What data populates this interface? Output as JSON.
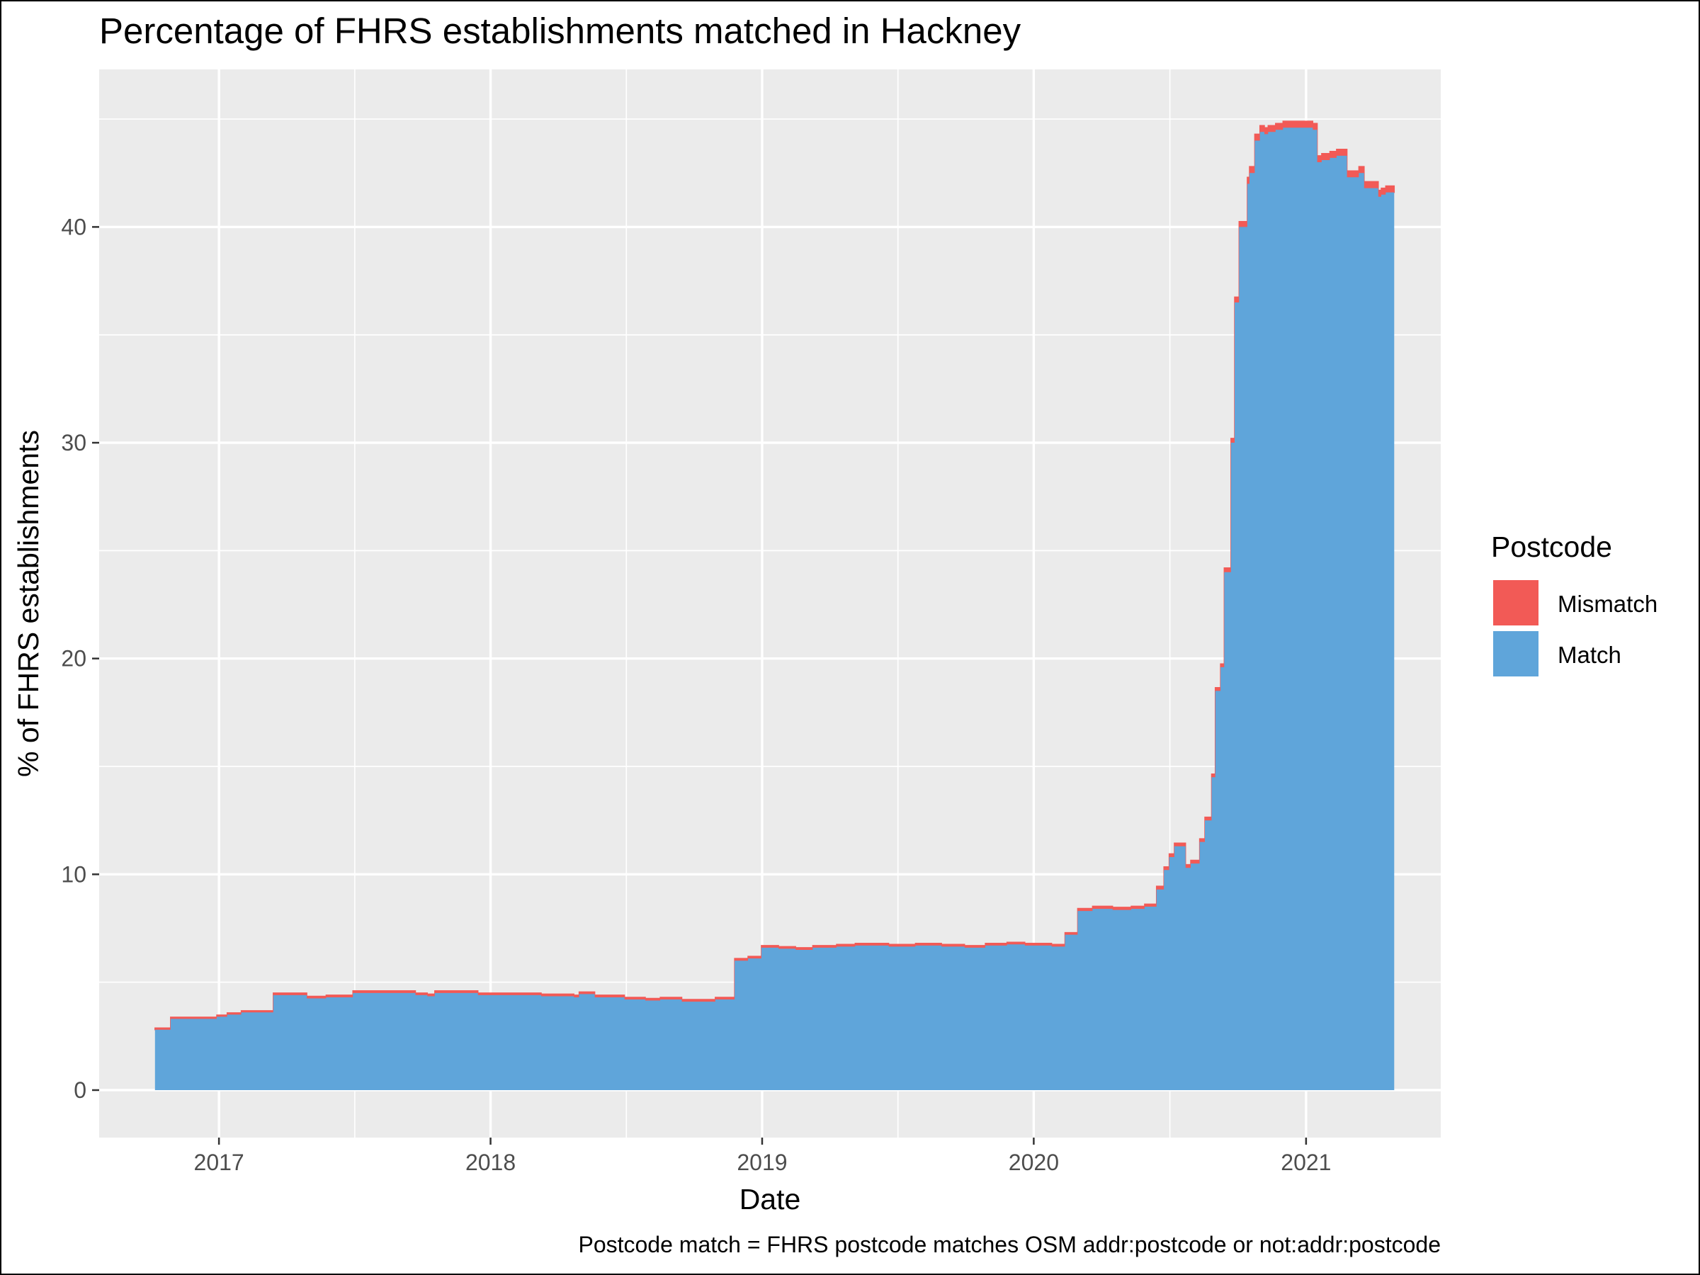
{
  "chart_data": {
    "type": "area",
    "stacked": true,
    "title": "Percentage of FHRS establishments matched in Hackney",
    "xlabel": "Date",
    "ylabel": "% of FHRS establishments",
    "caption": "Postcode match = FHRS postcode matches OSM addr:postcode or not:addr:postcode",
    "x_ticks": [
      "2017",
      "2018",
      "2019",
      "2020",
      "2021"
    ],
    "y_ticks": [
      0,
      10,
      20,
      30,
      40
    ],
    "xlim": [
      "2016-07-24",
      "2021-07-01"
    ],
    "ylim": [
      -2.2,
      47.3
    ],
    "grid": true,
    "legend": {
      "title": "Postcode",
      "position": "right",
      "entries": [
        {
          "name": "Mismatch",
          "color": "#F25A56"
        },
        {
          "name": "Match",
          "color": "#5FA5DA"
        }
      ]
    },
    "x": [
      "2016-10-07",
      "2016-10-28",
      "2016-11-24",
      "2016-12-29",
      "2017-01-12",
      "2017-01-31",
      "2017-02-11",
      "2017-03-15",
      "2017-04-29",
      "2017-05-25",
      "2017-06-30",
      "2017-07-22",
      "2017-08-30",
      "2017-09-22",
      "2017-10-08",
      "2017-10-18",
      "2017-12-15",
      "2018-01-31",
      "2018-03-10",
      "2018-04-23",
      "2018-04-30",
      "2018-05-21",
      "2018-06-30",
      "2018-07-28",
      "2018-08-17",
      "2018-09-15",
      "2018-10-12",
      "2018-10-30",
      "2018-10-31",
      "2018-11-25",
      "2018-11-28",
      "2018-12-13",
      "2018-12-31",
      "2019-01-23",
      "2019-02-15",
      "2019-03-10",
      "2019-04-11",
      "2019-05-06",
      "2019-06-20",
      "2019-07-26",
      "2019-08-30",
      "2019-09-30",
      "2019-10-28",
      "2019-11-26",
      "2019-12-20",
      "2020-01-24",
      "2020-01-25",
      "2020-02-12",
      "2020-02-14",
      "2020-02-29",
      "2020-03-20",
      "2020-04-16",
      "2020-05-11",
      "2020-05-22",
      "2020-05-29",
      "2020-06-10",
      "2020-06-14",
      "2020-06-24",
      "2020-07-01",
      "2020-07-08",
      "2020-07-23",
      "2020-07-30",
      "2020-08-11",
      "2020-08-18",
      "2020-08-27",
      "2020-09-01",
      "2020-09-08",
      "2020-09-13",
      "2020-09-22",
      "2020-09-27",
      "2020-10-03",
      "2020-10-14",
      "2020-10-17",
      "2020-10-24",
      "2020-10-31",
      "2020-11-06",
      "2020-11-11",
      "2020-11-16",
      "2020-11-21",
      "2020-12-01",
      "2020-12-20",
      "2021-01-10",
      "2021-01-16",
      "2021-01-22",
      "2021-02-02",
      "2021-02-11",
      "2021-02-25",
      "2021-03-13",
      "2021-03-20",
      "2021-04-08",
      "2021-04-12",
      "2021-04-18"
    ],
    "series": [
      {
        "name": "Match",
        "color": "#5FA5DA",
        "values": [
          2.8,
          3.3,
          3.3,
          3.4,
          3.5,
          3.6,
          3.6,
          4.4,
          4.25,
          4.3,
          4.5,
          4.5,
          4.5,
          4.4,
          4.35,
          4.5,
          4.4,
          4.4,
          4.35,
          4.3,
          4.45,
          4.3,
          4.2,
          4.15,
          4.2,
          4.1,
          4.1,
          4.2,
          4.2,
          6.0,
          6.0,
          6.1,
          6.6,
          6.55,
          6.5,
          6.6,
          6.65,
          6.7,
          6.65,
          6.7,
          6.65,
          6.6,
          6.7,
          6.75,
          6.7,
          6.7,
          6.65,
          7.2,
          7.2,
          8.3,
          8.4,
          8.35,
          8.4,
          8.4,
          8.5,
          8.5,
          9.3,
          10.2,
          10.8,
          11.3,
          10.3,
          10.5,
          11.5,
          12.5,
          14.5,
          18.5,
          19.6,
          24.0,
          30.0,
          36.5,
          40.0,
          42.0,
          42.5,
          44.0,
          44.4,
          44.3,
          44.4,
          44.4,
          44.5,
          44.6,
          44.6,
          44.5,
          43.0,
          43.1,
          43.2,
          43.3,
          42.3,
          42.5,
          41.8,
          41.4,
          41.5,
          41.6
        ]
      },
      {
        "name": "Mismatch",
        "color": "#F25A56",
        "values": [
          0.08,
          0.08,
          0.08,
          0.08,
          0.08,
          0.08,
          0.08,
          0.1,
          0.1,
          0.1,
          0.1,
          0.1,
          0.1,
          0.1,
          0.1,
          0.1,
          0.1,
          0.1,
          0.1,
          0.1,
          0.1,
          0.1,
          0.1,
          0.1,
          0.1,
          0.1,
          0.1,
          0.1,
          0.1,
          0.1,
          0.1,
          0.1,
          0.1,
          0.1,
          0.1,
          0.1,
          0.1,
          0.1,
          0.1,
          0.1,
          0.1,
          0.1,
          0.1,
          0.1,
          0.1,
          0.1,
          0.1,
          0.1,
          0.1,
          0.12,
          0.12,
          0.12,
          0.12,
          0.12,
          0.12,
          0.12,
          0.15,
          0.15,
          0.15,
          0.15,
          0.15,
          0.15,
          0.15,
          0.15,
          0.15,
          0.15,
          0.15,
          0.2,
          0.2,
          0.25,
          0.25,
          0.3,
          0.3,
          0.3,
          0.3,
          0.3,
          0.3,
          0.3,
          0.3,
          0.3,
          0.3,
          0.3,
          0.3,
          0.3,
          0.3,
          0.3,
          0.3,
          0.3,
          0.3,
          0.3,
          0.3,
          0.3
        ]
      }
    ]
  }
}
